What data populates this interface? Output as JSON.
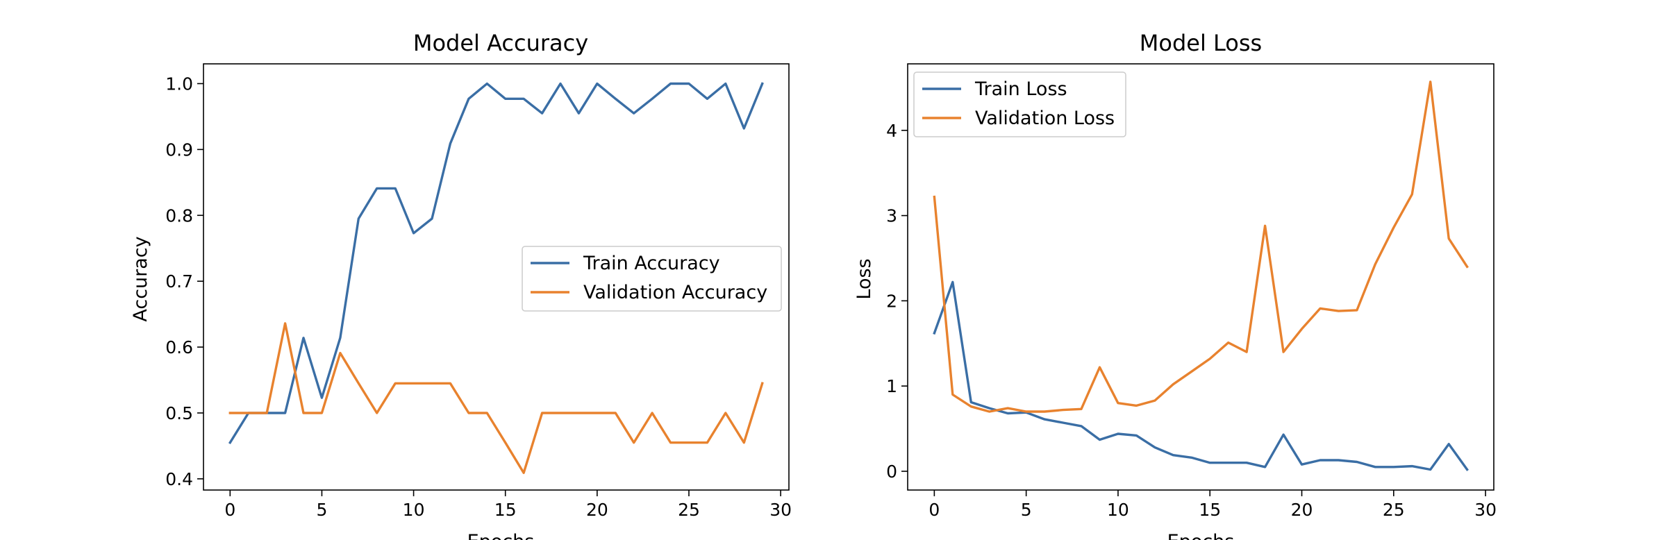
{
  "chart_data": [
    {
      "type": "line",
      "title": "Model Accuracy",
      "xlabel": "Epochs",
      "ylabel": "Accuracy",
      "xlim": [
        -1.45,
        30.45
      ],
      "ylim": [
        0.383,
        1.03
      ],
      "xticks": [
        0,
        5,
        10,
        15,
        20,
        25,
        30
      ],
      "yticks": [
        0.4,
        0.5,
        0.6,
        0.7,
        0.8,
        0.9,
        1.0
      ],
      "ytick_format": 1,
      "legend": "center-right",
      "x": [
        0,
        1,
        2,
        3,
        4,
        5,
        6,
        7,
        8,
        9,
        10,
        11,
        12,
        13,
        14,
        15,
        16,
        17,
        18,
        19,
        20,
        21,
        22,
        23,
        24,
        25,
        26,
        27,
        28,
        29
      ],
      "series": [
        {
          "name": "Train Accuracy",
          "color": "#3a6ea5",
          "values": [
            0.455,
            0.5,
            0.5,
            0.5,
            0.614,
            0.523,
            0.614,
            0.795,
            0.841,
            0.841,
            0.773,
            0.795,
            0.909,
            0.977,
            1.0,
            0.977,
            0.977,
            0.955,
            1.0,
            0.955,
            1.0,
            0.977,
            0.955,
            0.977,
            1.0,
            1.0,
            0.977,
            1.0,
            0.932,
            1.0
          ]
        },
        {
          "name": "Validation Accuracy",
          "color": "#e8822e",
          "values": [
            0.5,
            0.5,
            0.5,
            0.636,
            0.5,
            0.5,
            0.591,
            0.545,
            0.5,
            0.545,
            0.545,
            0.545,
            0.545,
            0.5,
            0.5,
            0.455,
            0.409,
            0.5,
            0.5,
            0.5,
            0.5,
            0.5,
            0.455,
            0.5,
            0.455,
            0.455,
            0.455,
            0.5,
            0.455,
            0.545
          ]
        }
      ]
    },
    {
      "type": "line",
      "title": "Model Loss",
      "xlabel": "Epochs",
      "ylabel": "Loss",
      "xlim": [
        -1.45,
        30.45
      ],
      "ylim": [
        -0.22,
        4.78
      ],
      "xticks": [
        0,
        5,
        10,
        15,
        20,
        25,
        30
      ],
      "yticks": [
        0,
        1,
        2,
        3,
        4
      ],
      "ytick_format": 0,
      "legend": "top-left",
      "x": [
        0,
        1,
        2,
        3,
        4,
        5,
        6,
        7,
        8,
        9,
        10,
        11,
        12,
        13,
        14,
        15,
        16,
        17,
        18,
        19,
        20,
        21,
        22,
        23,
        24,
        25,
        26,
        27,
        28,
        29
      ],
      "series": [
        {
          "name": "Train Loss",
          "color": "#3a6ea5",
          "values": [
            1.62,
            2.22,
            0.81,
            0.74,
            0.68,
            0.69,
            0.61,
            0.57,
            0.53,
            0.37,
            0.44,
            0.42,
            0.28,
            0.19,
            0.16,
            0.1,
            0.1,
            0.1,
            0.05,
            0.43,
            0.08,
            0.13,
            0.13,
            0.11,
            0.05,
            0.05,
            0.06,
            0.02,
            0.32,
            0.02
          ]
        },
        {
          "name": "Validation Loss",
          "color": "#e8822e",
          "values": [
            3.22,
            0.9,
            0.76,
            0.7,
            0.74,
            0.7,
            0.7,
            0.72,
            0.73,
            1.22,
            0.8,
            0.77,
            0.83,
            1.02,
            1.17,
            1.32,
            1.51,
            1.4,
            2.88,
            1.4,
            1.67,
            1.91,
            1.88,
            1.89,
            2.43,
            2.86,
            3.25,
            4.57,
            2.73,
            2.4
          ]
        }
      ]
    }
  ]
}
